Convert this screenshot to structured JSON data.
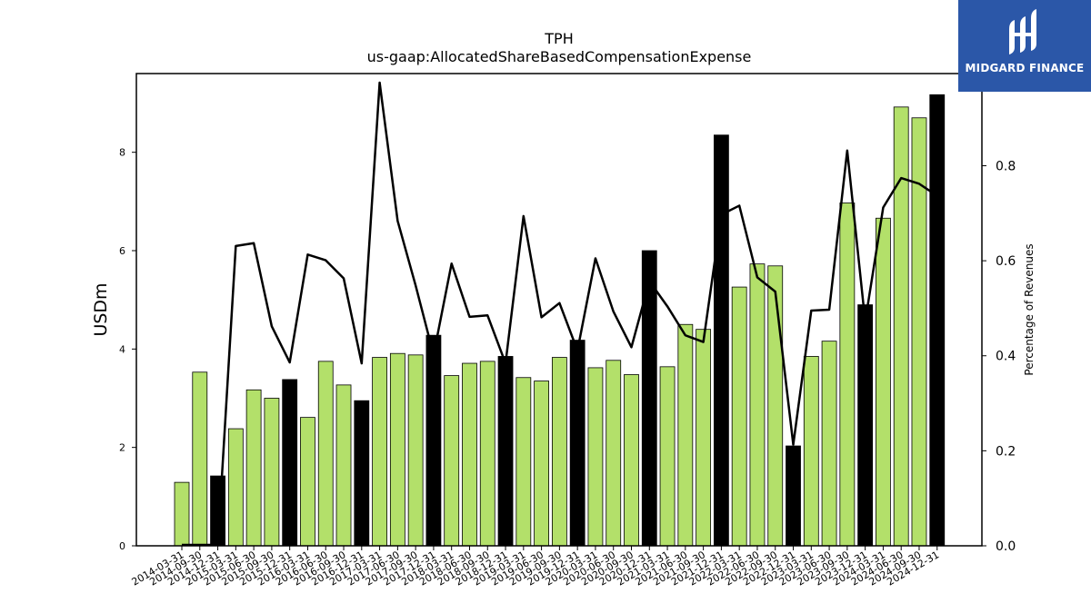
{
  "chart_data": {
    "type": "bar",
    "title": "TPH",
    "subtitle": "us-gaap:AllocatedShareBasedCompensationExpense",
    "ylabel": "USDm",
    "y2label": "Percentage of Revenues",
    "ylim": [
      0,
      9.6
    ],
    "y2lim": [
      0,
      0.994
    ],
    "yticks": [
      0,
      2,
      4,
      6,
      8
    ],
    "y2ticks": [
      "0.0",
      "0.2",
      "0.4",
      "0.6",
      "0.8"
    ],
    "colors": {
      "bar_quarter": "#b3e06a",
      "bar_annual": "#000000",
      "line": "#000000"
    },
    "categories": [
      "2014-03-31",
      "2014-09-30",
      "2014-12-31",
      "2015-03-31",
      "2015-06-30",
      "2015-09-30",
      "2015-12-31",
      "2016-03-31",
      "2016-06-30",
      "2016-09-30",
      "2016-12-31",
      "2017-03-31",
      "2017-06-30",
      "2017-09-30",
      "2017-12-31",
      "2018-03-31",
      "2018-06-30",
      "2018-09-30",
      "2018-12-31",
      "2019-03-31",
      "2019-06-30",
      "2019-09-30",
      "2019-12-31",
      "2020-03-31",
      "2020-06-30",
      "2020-09-30",
      "2020-12-31",
      "2021-03-31",
      "2021-06-30",
      "2021-09-30",
      "2021-12-31",
      "2022-03-31",
      "2022-06-30",
      "2022-09-30",
      "2022-12-31",
      "2023-03-31",
      "2023-06-30",
      "2023-09-30",
      "2023-12-31",
      "2024-03-31",
      "2024-06-30",
      "2024-09-30",
      "2024-12-31"
    ],
    "values": [
      1.29,
      3.53,
      1.42,
      2.38,
      3.17,
      3.0,
      3.38,
      2.61,
      3.75,
      3.27,
      2.95,
      3.83,
      3.91,
      3.88,
      4.28,
      3.46,
      3.71,
      3.75,
      3.85,
      3.42,
      3.35,
      3.83,
      4.18,
      3.62,
      3.77,
      3.48,
      6.0,
      3.64,
      4.5,
      4.4,
      8.35,
      5.26,
      5.73,
      5.69,
      2.03,
      3.85,
      4.16,
      6.97,
      4.9,
      6.66,
      8.92,
      8.7,
      9.17
    ],
    "annual": [
      false,
      false,
      true,
      false,
      false,
      false,
      true,
      false,
      false,
      false,
      true,
      false,
      false,
      false,
      true,
      false,
      false,
      false,
      true,
      false,
      false,
      false,
      true,
      false,
      false,
      false,
      true,
      false,
      false,
      false,
      true,
      false,
      false,
      false,
      true,
      false,
      false,
      false,
      true,
      false,
      false,
      false,
      true
    ],
    "line_values": [
      0.002,
      0.002,
      0.002,
      0.631,
      0.637,
      0.462,
      0.386,
      0.613,
      0.601,
      0.563,
      0.384,
      0.975,
      0.684,
      0.548,
      0.402,
      0.594,
      0.482,
      0.485,
      0.384,
      0.694,
      0.481,
      0.511,
      0.411,
      0.605,
      0.493,
      0.418,
      0.557,
      0.504,
      0.443,
      0.429,
      0.697,
      0.716,
      0.565,
      0.535,
      0.213,
      0.495,
      0.497,
      0.832,
      0.472,
      0.712,
      0.774,
      0.762,
      0.737
    ]
  },
  "logo": {
    "text": "MIDGARD FINANCE"
  }
}
